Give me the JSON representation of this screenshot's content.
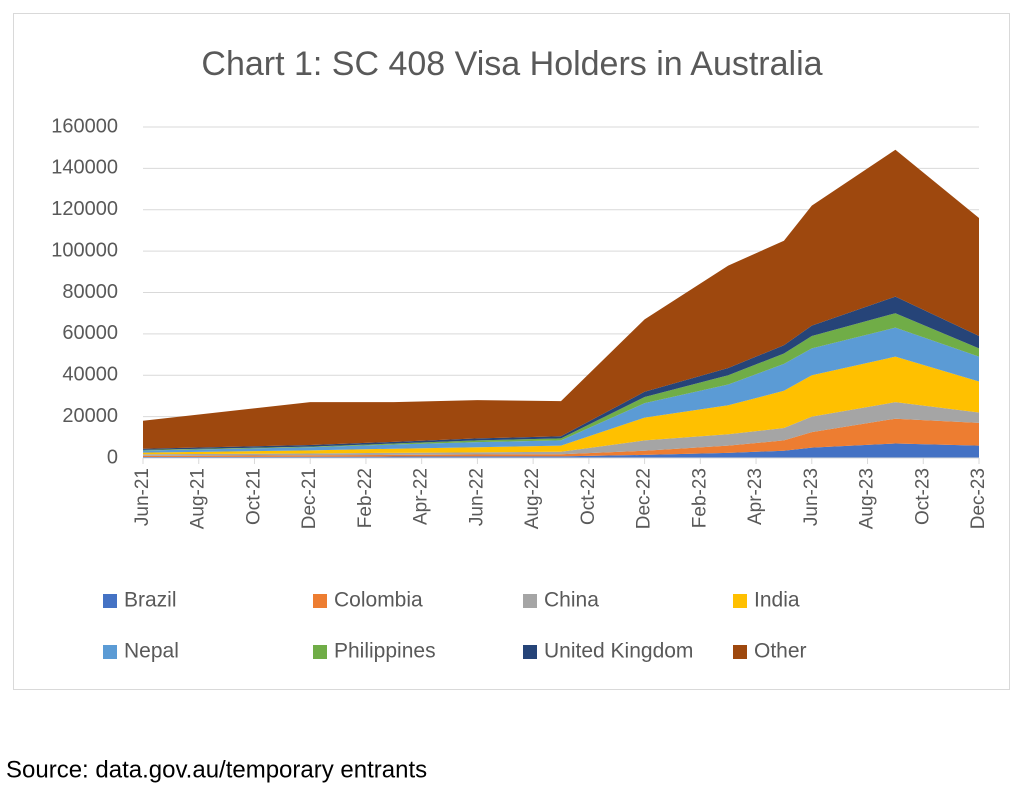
{
  "chart_data": {
    "type": "stacked_area",
    "title": "Chart 1: SC 408 Visa Holders in Australia",
    "x": [
      "Jun-21",
      "Dec-21",
      "Mar-22",
      "Jun-22",
      "Sep-22",
      "Dec-22",
      "Mar-23",
      "May-23",
      "Jun-23",
      "Sep-23",
      "Dec-23"
    ],
    "xticks": [
      "Jun-21",
      "Aug-21",
      "Oct-21",
      "Dec-21",
      "Feb-22",
      "Apr-22",
      "Jun-22",
      "Aug-22",
      "Oct-22",
      "Dec-22",
      "Feb-23",
      "Apr-23",
      "Jun-23",
      "Aug-23",
      "Oct-23",
      "Dec-23"
    ],
    "series": [
      {
        "name": "Brazil",
        "color": "#4472c4",
        "values": [
          500,
          600,
          700,
          800,
          800,
          1500,
          2500,
          3500,
          5000,
          7000,
          6000
        ]
      },
      {
        "name": "Colombia",
        "color": "#ed7d31",
        "values": [
          500,
          700,
          800,
          900,
          1000,
          2000,
          3500,
          5000,
          7500,
          12000,
          11000
        ]
      },
      {
        "name": "China",
        "color": "#a5a5a5",
        "values": [
          800,
          900,
          1000,
          1000,
          1200,
          5000,
          5500,
          6000,
          7500,
          8000,
          5000
        ]
      },
      {
        "name": "India",
        "color": "#ffc000",
        "values": [
          800,
          1500,
          2000,
          2500,
          3000,
          11000,
          14000,
          18000,
          20000,
          22000,
          15000
        ]
      },
      {
        "name": "Nepal",
        "color": "#5b9bd5",
        "values": [
          1000,
          1500,
          2000,
          2500,
          2500,
          7000,
          10000,
          13000,
          13000,
          14000,
          12000
        ]
      },
      {
        "name": "Philippines",
        "color": "#70ad47",
        "values": [
          300,
          300,
          500,
          800,
          1000,
          3000,
          4500,
          5000,
          6000,
          7000,
          4000
        ]
      },
      {
        "name": "United Kingdom",
        "color": "#264478",
        "values": [
          600,
          800,
          800,
          1000,
          1000,
          2500,
          3500,
          4000,
          5000,
          8000,
          6000
        ]
      },
      {
        "name": "Other",
        "color": "#9e480e",
        "values": [
          13500,
          20700,
          19200,
          18500,
          17000,
          35000,
          49500,
          50500,
          58000,
          71000,
          57000
        ]
      }
    ],
    "ylim": [
      0,
      160000
    ],
    "yticks": [
      0,
      20000,
      40000,
      60000,
      80000,
      100000,
      120000,
      140000,
      160000
    ],
    "grid": true,
    "legend": "bottom",
    "source": "Source: data.gov.au/temporary entrants"
  }
}
